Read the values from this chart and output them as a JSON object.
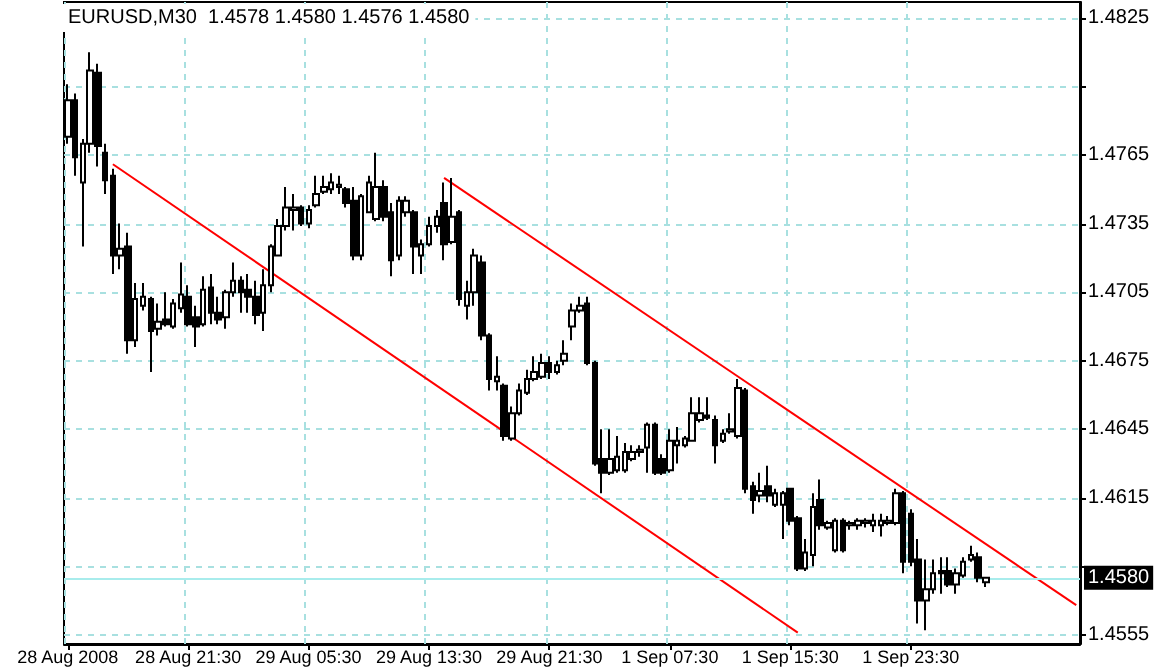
{
  "chart_data": {
    "type": "candlestick",
    "title": "EURUSD,M30  1.4578 1.4580 1.4576 1.4580",
    "categories": [
      "28 Aug 2008",
      null,
      null,
      null,
      null,
      null,
      null,
      null,
      null,
      null,
      null,
      null,
      null,
      null,
      null,
      null,
      "28 Aug 21:30",
      null,
      null,
      null,
      null,
      null,
      null,
      null,
      null,
      null,
      null,
      null,
      null,
      null,
      null,
      null,
      "29 Aug 05:30",
      null,
      null,
      null,
      null,
      null,
      null,
      null,
      null,
      null,
      null,
      null,
      null,
      null,
      null,
      null,
      "29 Aug 13:30",
      null,
      null,
      null,
      null,
      null,
      null,
      null,
      null,
      null,
      null,
      null,
      null,
      null,
      null,
      null,
      "29 Aug 21:30",
      null,
      null,
      null,
      null,
      null,
      null,
      null,
      null,
      null,
      null,
      null,
      null,
      null,
      null,
      null,
      "1 Sep 07:30",
      null,
      null,
      null,
      null,
      null,
      null,
      null,
      null,
      null,
      null,
      null,
      null,
      null,
      null,
      null,
      "1 Sep 15:30",
      null,
      null,
      null,
      null,
      null,
      null,
      null,
      null,
      null,
      null,
      null,
      null,
      null,
      null,
      null,
      "1 Sep 23:30",
      null,
      null,
      null,
      null,
      null,
      null,
      null,
      null,
      null,
      null,
      null,
      null,
      null,
      null,
      null,
      null,
      null,
      null,
      null,
      null,
      null,
      null
    ],
    "ohlc": [
      [
        1.4773,
        1.4796,
        1.477,
        1.4789
      ],
      [
        1.4789,
        1.4792,
        1.4756,
        1.4764
      ],
      [
        1.4753,
        1.4772,
        1.4725,
        1.477
      ],
      [
        1.477,
        1.481,
        1.4766,
        1.4802
      ],
      [
        1.4801,
        1.4805,
        1.476,
        1.4769
      ],
      [
        1.4766,
        1.477,
        1.4748,
        1.4754
      ],
      [
        1.4756,
        1.4759,
        1.4713,
        1.4721
      ],
      [
        1.4721,
        1.4735,
        1.4715,
        1.4724
      ],
      [
        1.4725,
        1.4731,
        1.4678,
        1.4684
      ],
      [
        1.4684,
        1.4709,
        1.4681,
        1.4702
      ],
      [
        1.4699,
        1.4709,
        1.4697,
        1.4703
      ],
      [
        1.4702,
        1.4703,
        1.467,
        1.4688
      ],
      [
        1.4689,
        1.47,
        1.4686,
        1.4692
      ],
      [
        1.4693,
        1.4705,
        1.469,
        1.4691
      ],
      [
        1.469,
        1.4702,
        1.4689,
        1.47
      ],
      [
        1.4698,
        1.4718,
        1.4696,
        1.4704
      ],
      [
        1.4703,
        1.4708,
        1.469,
        1.4691
      ],
      [
        1.4694,
        1.4699,
        1.4681,
        1.469
      ],
      [
        1.4691,
        1.4712,
        1.469,
        1.4706
      ],
      [
        1.4707,
        1.4713,
        1.4691,
        1.4696
      ],
      [
        1.4696,
        1.4703,
        1.4691,
        1.4693
      ],
      [
        1.4694,
        1.4706,
        1.4689,
        1.4705
      ],
      [
        1.4705,
        1.4718,
        1.4703,
        1.471
      ],
      [
        1.471,
        1.4712,
        1.4696,
        1.4705
      ],
      [
        1.4706,
        1.4713,
        1.4696,
        1.4703
      ],
      [
        1.4703,
        1.471,
        1.4691,
        1.4695
      ],
      [
        1.4696,
        1.4715,
        1.4688,
        1.4708
      ],
      [
        1.4708,
        1.4726,
        1.4705,
        1.4725
      ],
      [
        1.4721,
        1.4737,
        1.4721,
        1.4734
      ],
      [
        1.4734,
        1.4751,
        1.4732,
        1.4742
      ],
      [
        1.4741,
        1.4748,
        1.4732,
        1.4742
      ],
      [
        1.4742,
        1.4743,
        1.4734,
        1.4735
      ],
      [
        1.4735,
        1.4743,
        1.4733,
        1.4741
      ],
      [
        1.4743,
        1.4756,
        1.4742,
        1.4748
      ],
      [
        1.4749,
        1.4756,
        1.4748,
        1.4751
      ],
      [
        1.475,
        1.4757,
        1.4748,
        1.4753
      ],
      [
        1.4751,
        1.4756,
        1.4748,
        1.4752
      ],
      [
        1.475,
        1.4751,
        1.4742,
        1.4744
      ],
      [
        1.4745,
        1.4751,
        1.4719,
        1.4721
      ],
      [
        1.4721,
        1.4748,
        1.4719,
        1.4747
      ],
      [
        1.474,
        1.4756,
        1.474,
        1.4753
      ],
      [
        1.4737,
        1.4766,
        1.4736,
        1.4751
      ],
      [
        1.4751,
        1.4754,
        1.4736,
        1.4738
      ],
      [
        1.474,
        1.4744,
        1.4712,
        1.4719
      ],
      [
        1.4721,
        1.4747,
        1.4719,
        1.4745
      ],
      [
        1.474,
        1.4747,
        1.4738,
        1.4745
      ],
      [
        1.474,
        1.4741,
        1.4713,
        1.4725
      ],
      [
        1.4721,
        1.4728,
        1.4713,
        1.4726
      ],
      [
        1.4726,
        1.4738,
        1.4725,
        1.4734
      ],
      [
        1.4734,
        1.4741,
        1.4731,
        1.4738
      ],
      [
        1.4744,
        1.4753,
        1.4719,
        1.4726
      ],
      [
        1.4727,
        1.4755,
        1.4726,
        1.4738
      ],
      [
        1.474,
        1.4741,
        1.4699,
        1.4702
      ],
      [
        1.4699,
        1.471,
        1.4693,
        1.4705
      ],
      [
        1.4705,
        1.4724,
        1.4699,
        1.4721
      ],
      [
        1.4718,
        1.4721,
        1.4684,
        1.4686
      ],
      [
        1.4686,
        1.4687,
        1.4662,
        1.4667
      ],
      [
        1.4666,
        1.4677,
        1.4662,
        1.4668
      ],
      [
        1.4664,
        1.4665,
        1.464,
        1.4642
      ],
      [
        1.4641,
        1.4655,
        1.464,
        1.4652
      ],
      [
        1.4652,
        1.4665,
        1.4651,
        1.4662
      ],
      [
        1.4661,
        1.4671,
        1.466,
        1.4667
      ],
      [
        1.4667,
        1.4677,
        1.4666,
        1.467
      ],
      [
        1.4668,
        1.4678,
        1.4667,
        1.4674
      ],
      [
        1.4674,
        1.4677,
        1.4667,
        1.467
      ],
      [
        1.467,
        1.4675,
        1.4669,
        1.4673
      ],
      [
        1.4675,
        1.4684,
        1.4673,
        1.4678
      ],
      [
        1.469,
        1.47,
        1.4684,
        1.4697
      ],
      [
        1.4697,
        1.4703,
        1.4696,
        1.4699
      ],
      [
        1.47,
        1.4703,
        1.4673,
        1.4674
      ],
      [
        1.4674,
        1.4675,
        1.4629,
        1.463
      ],
      [
        1.4632,
        1.4645,
        1.4617,
        1.4626
      ],
      [
        1.4626,
        1.4645,
        1.4625,
        1.4632
      ],
      [
        1.4627,
        1.4642,
        1.4626,
        1.4633
      ],
      [
        1.4627,
        1.4639,
        1.4626,
        1.4635
      ],
      [
        1.4632,
        1.4638,
        1.4631,
        1.4635
      ],
      [
        1.4635,
        1.4638,
        1.4633,
        1.4636
      ],
      [
        1.4637,
        1.4648,
        1.4626,
        1.4647
      ],
      [
        1.4647,
        1.4648,
        1.4625,
        1.4626
      ],
      [
        1.4632,
        1.4634,
        1.4625,
        1.4626
      ],
      [
        1.4627,
        1.4645,
        1.4626,
        1.464
      ],
      [
        1.4638,
        1.4646,
        1.463,
        1.464
      ],
      [
        1.4638,
        1.4642,
        1.4637,
        1.4641
      ],
      [
        1.464,
        1.4659,
        1.464,
        1.4652
      ],
      [
        1.4649,
        1.4659,
        1.4648,
        1.4652
      ],
      [
        1.4651,
        1.4659,
        1.4649,
        1.465
      ],
      [
        1.4649,
        1.4651,
        1.463,
        1.4638
      ],
      [
        1.464,
        1.4645,
        1.4639,
        1.4643
      ],
      [
        1.4644,
        1.4652,
        1.4643,
        1.4645
      ],
      [
        1.4642,
        1.4667,
        1.4641,
        1.4663
      ],
      [
        1.4662,
        1.4663,
        1.4617,
        1.4619
      ],
      [
        1.462,
        1.4622,
        1.4608,
        1.4614
      ],
      [
        1.4616,
        1.4626,
        1.4613,
        1.4618
      ],
      [
        1.462,
        1.4629,
        1.4613,
        1.4616
      ],
      [
        1.4612,
        1.4619,
        1.4611,
        1.4617
      ],
      [
        1.4612,
        1.4618,
        1.4597,
        1.4617
      ],
      [
        1.4619,
        1.4619,
        1.4603,
        1.4605
      ],
      [
        1.4606,
        1.4607,
        1.4583,
        1.4584
      ],
      [
        1.4584,
        1.4597,
        1.4583,
        1.4591
      ],
      [
        1.459,
        1.4617,
        1.4585,
        1.4611
      ],
      [
        1.4614,
        1.4623,
        1.4601,
        1.4603
      ],
      [
        1.4602,
        1.4605,
        1.4601,
        1.4604
      ],
      [
        1.4592,
        1.4606,
        1.4591,
        1.4605
      ],
      [
        1.4605,
        1.4606,
        1.4591,
        1.4592
      ],
      [
        1.4603,
        1.4605,
        1.4601,
        1.4604
      ],
      [
        1.4603,
        1.4606,
        1.4601,
        1.4605
      ],
      [
        1.4604,
        1.4606,
        1.4602,
        1.4605
      ],
      [
        1.4603,
        1.4608,
        1.46,
        1.4605
      ],
      [
        1.4603,
        1.4608,
        1.4598,
        1.4605
      ],
      [
        1.4604,
        1.4607,
        1.4603,
        1.4605
      ],
      [
        1.4604,
        1.4619,
        1.4603,
        1.4617
      ],
      [
        1.4617,
        1.4618,
        1.4582,
        1.4587
      ],
      [
        1.4608,
        1.461,
        1.4585,
        1.4587
      ],
      [
        1.4588,
        1.4597,
        1.456,
        1.457
      ],
      [
        1.457,
        1.4588,
        1.4557,
        1.4575
      ],
      [
        1.4575,
        1.4588,
        1.4573,
        1.4582
      ],
      [
        1.4583,
        1.4589,
        1.4573,
        1.4582
      ],
      [
        1.4583,
        1.4589,
        1.4576,
        1.4577
      ],
      [
        1.4577,
        1.4584,
        1.4573,
        1.4582
      ],
      [
        1.4581,
        1.4589,
        1.458,
        1.4587
      ],
      [
        1.4588,
        1.4594,
        1.4587,
        1.459
      ],
      [
        1.4589,
        1.4591,
        1.4578,
        1.458
      ],
      [
        1.4578,
        1.458,
        1.4576,
        1.458
      ],
      null,
      null,
      null,
      null,
      null,
      null,
      null,
      null,
      null,
      null,
      null,
      null
    ],
    "series": [
      {
        "type": "line",
        "color": "#ff0000",
        "values": [
          null,
          null,
          null,
          null,
          null,
          null,
          1.4761,
          null,
          null,
          null,
          null,
          null,
          null,
          null,
          null,
          null,
          null,
          null,
          null,
          null,
          null,
          null,
          null,
          null,
          null,
          null,
          null,
          null,
          null,
          null,
          null,
          null,
          null,
          null,
          null,
          null,
          null,
          null,
          null,
          null,
          null,
          null,
          null,
          null,
          null,
          null,
          null,
          null,
          null,
          null,
          null,
          null,
          null,
          null,
          null,
          null,
          null,
          null,
          null,
          null,
          null,
          null,
          null,
          null,
          null,
          null,
          null,
          null,
          null,
          null,
          null,
          null,
          null,
          null,
          null,
          null,
          null,
          null,
          null,
          null,
          null,
          null,
          null,
          null,
          null,
          null,
          null,
          null,
          null,
          null,
          null,
          null,
          null,
          null,
          null,
          null,
          null,
          1.4556,
          null,
          null,
          null,
          null,
          null,
          null,
          null,
          null,
          null,
          null,
          null,
          null,
          null,
          null,
          null,
          null,
          null,
          null,
          null,
          null,
          null,
          null,
          null,
          null,
          null,
          null,
          null,
          null,
          null,
          null,
          null,
          null,
          null,
          null,
          null,
          null,
          null
        ]
      },
      {
        "type": "line",
        "color": "#ff0000",
        "values": [
          null,
          null,
          null,
          null,
          null,
          null,
          null,
          null,
          null,
          null,
          null,
          null,
          null,
          null,
          null,
          null,
          null,
          null,
          null,
          null,
          null,
          null,
          null,
          null,
          null,
          null,
          null,
          null,
          null,
          null,
          null,
          null,
          null,
          null,
          null,
          null,
          null,
          null,
          null,
          null,
          null,
          null,
          null,
          null,
          null,
          null,
          null,
          null,
          null,
          null,
          1.4755,
          null,
          null,
          null,
          null,
          null,
          null,
          null,
          null,
          null,
          null,
          null,
          null,
          null,
          null,
          null,
          null,
          null,
          null,
          null,
          null,
          null,
          null,
          null,
          null,
          null,
          null,
          null,
          null,
          null,
          null,
          null,
          null,
          null,
          null,
          null,
          null,
          null,
          null,
          null,
          null,
          null,
          null,
          null,
          null,
          null,
          null,
          null,
          null,
          null,
          null,
          null,
          null,
          null,
          null,
          null,
          null,
          null,
          null,
          null,
          null,
          null,
          null,
          null,
          null,
          null,
          null,
          null,
          null,
          null,
          null,
          null,
          null,
          null,
          null,
          null,
          null,
          null,
          null,
          null,
          null,
          null,
          null,
          null,
          1.4568
        ]
      }
    ],
    "ylim": [
      1.4551,
      1.4832
    ],
    "yticks": [
      1.4555,
      {
        "value": 1.4585,
        "label": null
      },
      1.4615,
      1.4645,
      1.4675,
      1.4705,
      1.4735,
      1.4765,
      {
        "value": 1.4795,
        "label": null
      },
      1.4825
    ],
    "grid": true,
    "ref_lines": [
      {
        "axis": "y",
        "value": 1.458,
        "label": "1.4580",
        "color": "#a8ecec"
      }
    ]
  }
}
